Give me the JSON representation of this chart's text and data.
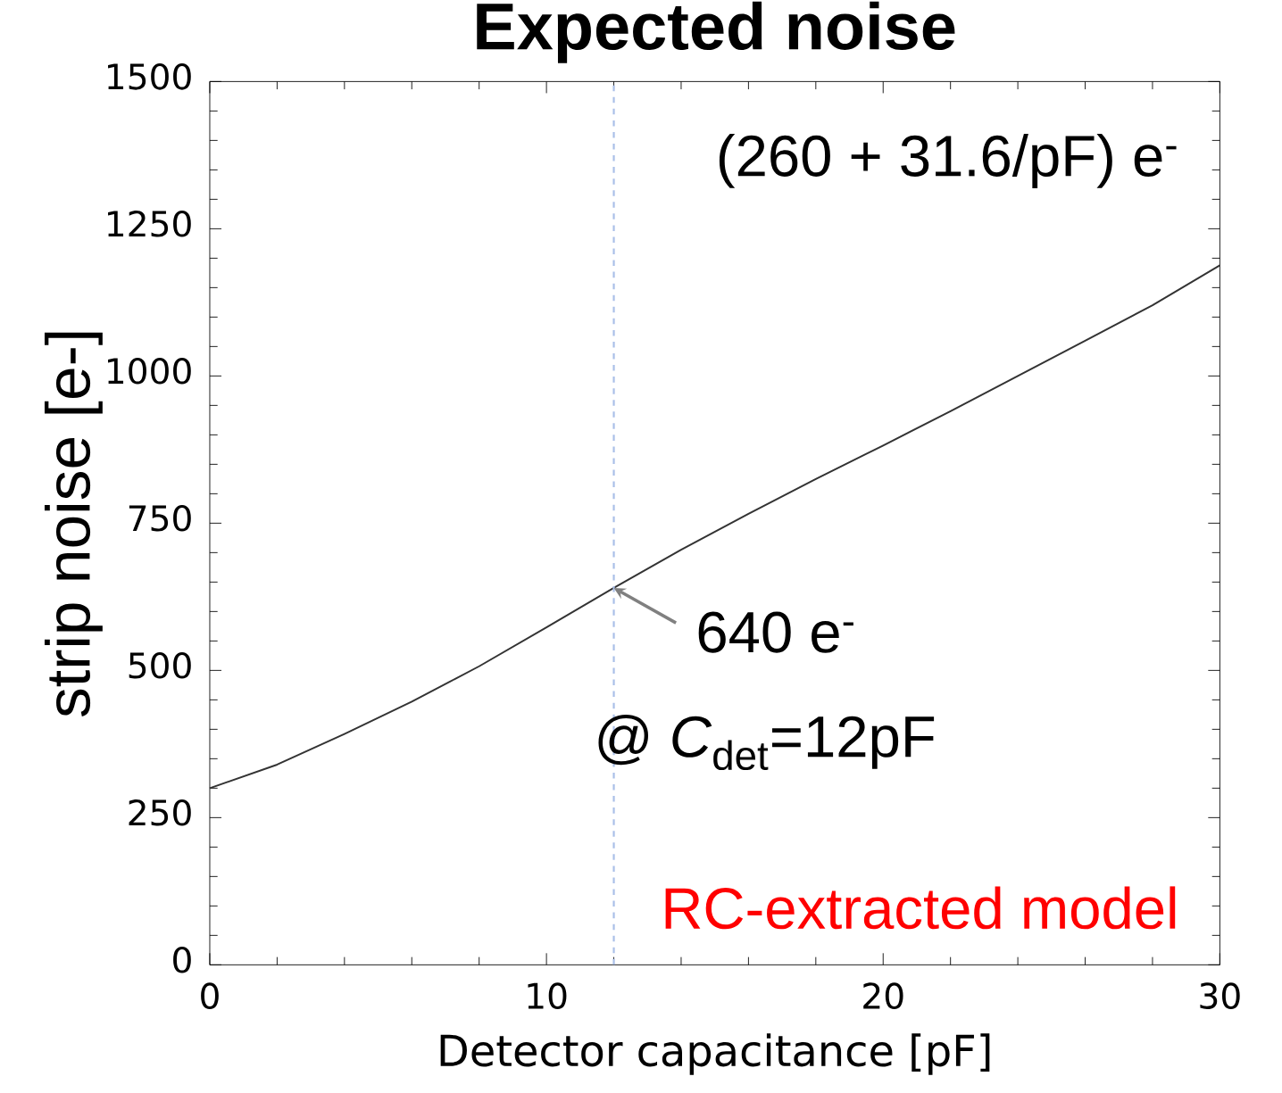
{
  "chart_data": {
    "type": "line",
    "title": "Expected noise",
    "xlabel": "Detector capacitance [pF]",
    "ylabel": "strip noise [e-]",
    "x": [
      0,
      2,
      4,
      6,
      8,
      10,
      12,
      14,
      16,
      18,
      20,
      22,
      24,
      26,
      28,
      30
    ],
    "series": [
      {
        "color": "#333333",
        "values": [
          300,
          340,
          392,
          447,
          507,
          573,
          640,
          705,
          766,
          825,
          882,
          940,
          1000,
          1060,
          1120,
          1188
        ]
      }
    ],
    "xlim": [
      0,
      30
    ],
    "xticks": [
      0,
      10,
      20,
      30
    ],
    "ylim": [
      0,
      1500
    ],
    "yticks": [
      0,
      250,
      500,
      750,
      1000,
      1250,
      1500
    ],
    "ref_lines": [
      {
        "axis": "x",
        "value": 12,
        "color": "#aabfe8",
        "line_style": "dashed"
      }
    ],
    "annotations": [
      "(260 + 31.6/pF) e$^{-}$",
      {
        "text": "640 e$^{-}$",
        "x": 12,
        "y": 640
      },
      "@ *C*$_{det}$=12pF",
      "RC-extracted model"
    ],
    "marker": "none",
    "line_style": "solid",
    "grid": false
  }
}
